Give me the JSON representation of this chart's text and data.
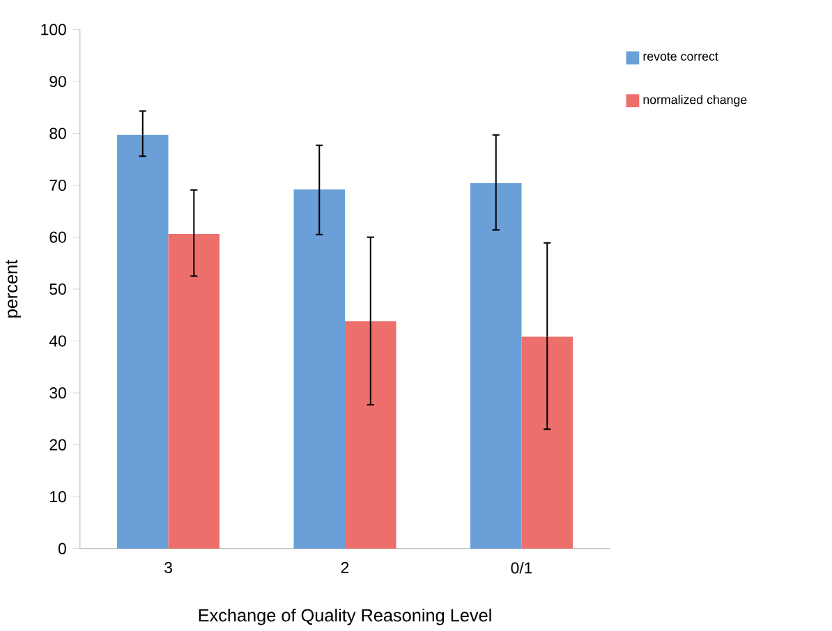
{
  "chart_data": {
    "type": "bar",
    "xlabel": "Exchange of Quality Reasoning Level",
    "ylabel": "percent",
    "categories": [
      "3",
      "2",
      "0/1"
    ],
    "series": [
      {
        "name": "revote correct",
        "color": "#6a9fd8",
        "values": [
          79.7,
          69.2,
          70.4
        ],
        "errors": [
          [
            75.6,
            84.3
          ],
          [
            60.5,
            77.7
          ],
          [
            61.4,
            79.7
          ]
        ]
      },
      {
        "name": "normalized change",
        "color": "#ec6f6b",
        "values": [
          60.6,
          43.8,
          40.8
        ],
        "errors": [
          [
            52.5,
            69.1
          ],
          [
            27.7,
            60.0
          ],
          [
            23.0,
            58.9
          ]
        ]
      }
    ],
    "ylim": [
      0,
      100
    ],
    "yticks": [
      0,
      10,
      20,
      30,
      40,
      50,
      60,
      70,
      80,
      90,
      100
    ],
    "grid": false,
    "legend": "top right"
  }
}
